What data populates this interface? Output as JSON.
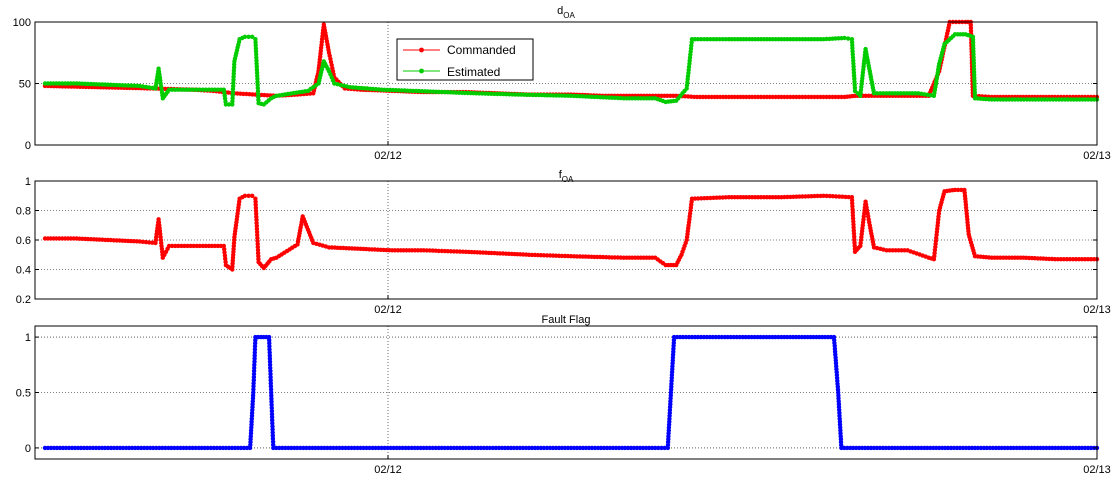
{
  "colors": {
    "commanded": "#ff0000",
    "estimated": "#00cc00",
    "fault": "#0000ff",
    "grid": "#000000"
  },
  "x_ticks": [
    "02/12",
    "02/13"
  ],
  "chart_data": [
    {
      "type": "line",
      "title_main": "d",
      "title_sub": "OA",
      "x_domain": [
        "02/11",
        "02/13"
      ],
      "ylim": [
        0,
        100
      ],
      "yticks": [
        "0",
        "50",
        "100"
      ],
      "legend": {
        "position": "inside-top-left",
        "entries": [
          "Commanded",
          "Estimated"
        ]
      },
      "grid": true,
      "series": [
        {
          "name": "Commanded",
          "color": "#ff0000",
          "points": [
            [
              0,
              48
            ],
            [
              0.05,
              47
            ],
            [
              0.1,
              46
            ],
            [
              0.14,
              45
            ],
            [
              0.16,
              44
            ],
            [
              0.18,
              42
            ],
            [
              0.2,
              41
            ],
            [
              0.22,
              40
            ],
            [
              0.24,
              41
            ],
            [
              0.255,
              42
            ],
            [
              0.26,
              60
            ],
            [
              0.265,
              98
            ],
            [
              0.27,
              75
            ],
            [
              0.275,
              55
            ],
            [
              0.285,
              46
            ],
            [
              0.3,
              45
            ],
            [
              0.33,
              44
            ],
            [
              0.36,
              43
            ],
            [
              0.4,
              43
            ],
            [
              0.43,
              42
            ],
            [
              0.46,
              41
            ],
            [
              0.5,
              41
            ],
            [
              0.53,
              40
            ],
            [
              0.55,
              40
            ],
            [
              0.6,
              40
            ],
            [
              0.62,
              39
            ],
            [
              0.65,
              39
            ],
            [
              0.7,
              39
            ],
            [
              0.74,
              39
            ],
            [
              0.76,
              39
            ],
            [
              0.77,
              40
            ],
            [
              0.78,
              40
            ],
            [
              0.8,
              40
            ],
            [
              0.82,
              40
            ],
            [
              0.84,
              40
            ],
            [
              0.85,
              60
            ],
            [
              0.86,
              100
            ],
            [
              0.875,
              100
            ],
            [
              0.88,
              100
            ],
            [
              0.882,
              40
            ],
            [
              0.9,
              39
            ],
            [
              0.93,
              39
            ],
            [
              0.96,
              39
            ],
            [
              1.0,
              39
            ]
          ]
        },
        {
          "name": "Estimated",
          "color": "#00cc00",
          "points": [
            [
              0,
              50
            ],
            [
              0.03,
              50
            ],
            [
              0.06,
              49
            ],
            [
              0.09,
              48
            ],
            [
              0.105,
              46
            ],
            [
              0.108,
              62
            ],
            [
              0.112,
              38
            ],
            [
              0.118,
              45
            ],
            [
              0.15,
              45
            ],
            [
              0.17,
              45
            ],
            [
              0.172,
              33
            ],
            [
              0.178,
              33
            ],
            [
              0.18,
              68
            ],
            [
              0.185,
              86
            ],
            [
              0.19,
              88
            ],
            [
              0.197,
              88
            ],
            [
              0.2,
              86
            ],
            [
              0.203,
              34
            ],
            [
              0.208,
              33
            ],
            [
              0.215,
              38
            ],
            [
              0.22,
              40
            ],
            [
              0.25,
              44
            ],
            [
              0.26,
              50
            ],
            [
              0.265,
              68
            ],
            [
              0.27,
              60
            ],
            [
              0.275,
              50
            ],
            [
              0.29,
              47
            ],
            [
              0.32,
              45
            ],
            [
              0.35,
              44
            ],
            [
              0.38,
              43
            ],
            [
              0.41,
              42
            ],
            [
              0.45,
              41
            ],
            [
              0.5,
              40
            ],
            [
              0.55,
              38
            ],
            [
              0.58,
              38
            ],
            [
              0.59,
              35
            ],
            [
              0.6,
              36
            ],
            [
              0.61,
              46
            ],
            [
              0.615,
              86
            ],
            [
              0.65,
              86
            ],
            [
              0.7,
              86
            ],
            [
              0.74,
              86
            ],
            [
              0.76,
              87
            ],
            [
              0.767,
              86
            ],
            [
              0.77,
              44
            ],
            [
              0.775,
              40
            ],
            [
              0.78,
              78
            ],
            [
              0.784,
              60
            ],
            [
              0.788,
              42
            ],
            [
              0.8,
              42
            ],
            [
              0.83,
              42
            ],
            [
              0.845,
              40
            ],
            [
              0.85,
              66
            ],
            [
              0.855,
              82
            ],
            [
              0.865,
              90
            ],
            [
              0.875,
              90
            ],
            [
              0.882,
              88
            ],
            [
              0.884,
              38
            ],
            [
              0.9,
              37
            ],
            [
              0.95,
              37
            ],
            [
              1.0,
              37
            ]
          ]
        }
      ]
    },
    {
      "type": "line",
      "title_main": "f",
      "title_sub": "OA",
      "x_domain": [
        "02/11",
        "02/13"
      ],
      "ylim": [
        0.2,
        1
      ],
      "yticks": [
        "0.2",
        "0.4",
        "0.6",
        "0.8",
        "1"
      ],
      "grid": true,
      "series": [
        {
          "name": "",
          "color": "#ff0000",
          "points": [
            [
              0,
              0.61
            ],
            [
              0.03,
              0.61
            ],
            [
              0.06,
              0.6
            ],
            [
              0.09,
              0.59
            ],
            [
              0.105,
              0.58
            ],
            [
              0.108,
              0.74
            ],
            [
              0.112,
              0.48
            ],
            [
              0.118,
              0.56
            ],
            [
              0.15,
              0.56
            ],
            [
              0.17,
              0.56
            ],
            [
              0.172,
              0.43
            ],
            [
              0.178,
              0.4
            ],
            [
              0.18,
              0.62
            ],
            [
              0.185,
              0.88
            ],
            [
              0.19,
              0.9
            ],
            [
              0.197,
              0.9
            ],
            [
              0.2,
              0.88
            ],
            [
              0.203,
              0.45
            ],
            [
              0.208,
              0.41
            ],
            [
              0.215,
              0.47
            ],
            [
              0.22,
              0.48
            ],
            [
              0.24,
              0.57
            ],
            [
              0.245,
              0.76
            ],
            [
              0.25,
              0.67
            ],
            [
              0.255,
              0.58
            ],
            [
              0.27,
              0.55
            ],
            [
              0.3,
              0.54
            ],
            [
              0.33,
              0.53
            ],
            [
              0.36,
              0.53
            ],
            [
              0.4,
              0.52
            ],
            [
              0.43,
              0.51
            ],
            [
              0.46,
              0.5
            ],
            [
              0.5,
              0.49
            ],
            [
              0.55,
              0.48
            ],
            [
              0.58,
              0.48
            ],
            [
              0.59,
              0.43
            ],
            [
              0.6,
              0.43
            ],
            [
              0.605,
              0.5
            ],
            [
              0.61,
              0.6
            ],
            [
              0.615,
              0.88
            ],
            [
              0.65,
              0.89
            ],
            [
              0.7,
              0.89
            ],
            [
              0.74,
              0.9
            ],
            [
              0.767,
              0.89
            ],
            [
              0.77,
              0.52
            ],
            [
              0.775,
              0.56
            ],
            [
              0.78,
              0.86
            ],
            [
              0.784,
              0.7
            ],
            [
              0.788,
              0.55
            ],
            [
              0.8,
              0.53
            ],
            [
              0.82,
              0.53
            ],
            [
              0.84,
              0.48
            ],
            [
              0.845,
              0.47
            ],
            [
              0.85,
              0.8
            ],
            [
              0.855,
              0.93
            ],
            [
              0.865,
              0.94
            ],
            [
              0.874,
              0.94
            ],
            [
              0.878,
              0.64
            ],
            [
              0.884,
              0.49
            ],
            [
              0.9,
              0.48
            ],
            [
              0.93,
              0.48
            ],
            [
              0.96,
              0.47
            ],
            [
              1.0,
              0.47
            ]
          ]
        }
      ]
    },
    {
      "type": "line",
      "title": "Fault Flag",
      "x_domain": [
        "02/11",
        "02/13"
      ],
      "ylim": [
        -0.1,
        1.1
      ],
      "yticks": [
        "0",
        "0.5",
        "1"
      ],
      "grid": true,
      "series": [
        {
          "name": "",
          "color": "#0000ff",
          "points": [
            [
              0,
              0
            ],
            [
              0.1,
              0
            ],
            [
              0.195,
              0
            ],
            [
              0.198,
              0.5
            ],
            [
              0.2,
              1
            ],
            [
              0.213,
              1
            ],
            [
              0.215,
              0.5
            ],
            [
              0.217,
              0
            ],
            [
              0.4,
              0
            ],
            [
              0.58,
              0
            ],
            [
              0.592,
              0
            ],
            [
              0.595,
              0.5
            ],
            [
              0.598,
              1
            ],
            [
              0.7,
              1
            ],
            [
              0.75,
              1
            ],
            [
              0.754,
              0.5
            ],
            [
              0.757,
              0
            ],
            [
              0.85,
              0
            ],
            [
              1.0,
              0
            ]
          ]
        }
      ]
    }
  ]
}
